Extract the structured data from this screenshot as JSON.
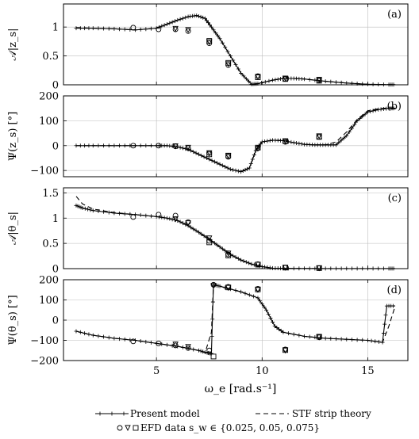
{
  "figure": {
    "xlabel": "ω_e [rad.s⁻¹]",
    "legend": {
      "present": "Present model",
      "stf": "STF strip theory",
      "efd": "EFD data s_w ∈ {0.025, 0.05, 0.075}"
    }
  },
  "chart_data": [
    {
      "type": "line",
      "panel_label": "(a)",
      "ylabel": "𝒜|z_s|",
      "xlim": [
        0.6,
        16.9
      ],
      "ylim": [
        0,
        1.4
      ],
      "xticks": [
        5,
        10,
        15
      ],
      "yticks": [
        0,
        0.5,
        1
      ],
      "ytick_labels": [
        "0",
        "0.5",
        "1"
      ],
      "grid": true,
      "series": [
        {
          "role": "present",
          "x": [
            1.2,
            2,
            3,
            4,
            5,
            5.5,
            6,
            6.5,
            6.9,
            7.3,
            7.6,
            8,
            8.5,
            9,
            9.5,
            9.8,
            10.5,
            11,
            11.5,
            12,
            13,
            14,
            15,
            16,
            16.3
          ],
          "y": [
            0.98,
            0.98,
            0.97,
            0.95,
            0.98,
            1.05,
            1.12,
            1.18,
            1.2,
            1.15,
            1.0,
            0.8,
            0.5,
            0.2,
            0.01,
            0.02,
            0.08,
            0.11,
            0.11,
            0.1,
            0.06,
            0.03,
            0.01,
            0.003,
            0.003
          ]
        },
        {
          "role": "stf",
          "x": [
            1.2,
            2,
            3,
            4,
            5,
            5.5,
            6,
            6.5,
            6.9,
            7.3,
            7.6,
            8,
            8.5,
            9,
            9.5,
            9.8,
            10.5,
            11,
            11.5,
            12,
            13,
            14,
            15,
            16,
            16.3
          ],
          "y": [
            0.99,
            0.98,
            0.97,
            0.95,
            0.98,
            1.05,
            1.12,
            1.18,
            1.2,
            1.15,
            1.0,
            0.8,
            0.5,
            0.2,
            0.01,
            0.02,
            0.08,
            0.11,
            0.11,
            0.1,
            0.06,
            0.03,
            0.01,
            0.003,
            0.003
          ]
        },
        {
          "role": "efd",
          "marker": "circle",
          "x": [
            3.9,
            5.1,
            5.9,
            6.5,
            7.5,
            8.4,
            9.8,
            11.1,
            12.7
          ],
          "y": [
            0.99,
            0.96,
            0.96,
            0.93,
            0.72,
            0.34,
            0.15,
            0.1,
            0.08
          ]
        },
        {
          "role": "efd",
          "marker": "triangle",
          "x": [
            5.9,
            6.5,
            7.5,
            8.4,
            9.8,
            11.1,
            12.7
          ],
          "y": [
            0.97,
            0.95,
            0.74,
            0.36,
            0.14,
            0.11,
            0.09
          ]
        },
        {
          "role": "efd",
          "marker": "square",
          "x": [
            7.5,
            8.4,
            9.8,
            11.1,
            12.7
          ],
          "y": [
            0.76,
            0.38,
            0.13,
            0.1,
            0.07
          ]
        }
      ]
    },
    {
      "type": "line",
      "panel_label": "(b)",
      "ylabel": "Ψ(z_s) [°]",
      "xlim": [
        0.6,
        16.9
      ],
      "ylim": [
        -125,
        200
      ],
      "xticks": [
        5,
        10,
        15
      ],
      "yticks": [
        -100,
        0,
        100,
        200
      ],
      "ytick_labels": [
        "−100",
        "0",
        "100",
        "200"
      ],
      "grid": true,
      "series": [
        {
          "role": "present",
          "x": [
            1.2,
            2,
            3,
            4,
            5,
            5.5,
            6,
            6.5,
            7,
            7.5,
            8,
            8.5,
            9,
            9.4,
            9.7,
            10,
            10.5,
            11,
            11.5,
            12,
            12.5,
            13,
            13.5,
            14,
            14.5,
            15,
            15.5,
            16,
            16.3
          ],
          "y": [
            0,
            0,
            0,
            0,
            0,
            0,
            -5,
            -15,
            -35,
            -55,
            -75,
            -95,
            -105,
            -90,
            -20,
            15,
            22,
            20,
            12,
            5,
            3,
            3,
            3,
            40,
            100,
            135,
            145,
            150,
            150
          ]
        },
        {
          "role": "stf",
          "x": [
            1.2,
            2,
            3,
            4,
            5,
            5.5,
            6,
            6.5,
            7,
            7.5,
            8,
            8.5,
            9,
            9.4,
            9.7,
            10,
            10.5,
            11,
            11.5,
            12,
            12.5,
            13,
            13.5,
            14,
            14.5,
            15,
            15.5,
            16,
            16.3
          ],
          "y": [
            0,
            0,
            0,
            0,
            0,
            0,
            -5,
            -15,
            -35,
            -55,
            -75,
            -95,
            -105,
            -90,
            -20,
            15,
            22,
            20,
            12,
            5,
            3,
            3,
            15,
            55,
            105,
            140,
            148,
            152,
            152
          ]
        },
        {
          "role": "efd",
          "marker": "circle",
          "x": [
            3.9,
            5.1,
            5.9,
            6.5,
            7.5,
            8.4,
            9.8,
            11.1,
            12.7
          ],
          "y": [
            0,
            0,
            -3,
            -10,
            -30,
            -45,
            -10,
            15,
            35
          ]
        },
        {
          "role": "efd",
          "marker": "triangle",
          "x": [
            5.9,
            6.5,
            7.5,
            8.4,
            9.8,
            11.1,
            12.7
          ],
          "y": [
            -2,
            -8,
            -30,
            -42,
            -12,
            18,
            38
          ]
        },
        {
          "role": "efd",
          "marker": "square",
          "x": [
            7.5,
            8.4,
            9.8,
            11.1,
            12.7
          ],
          "y": [
            -35,
            -40,
            -8,
            18,
            35
          ]
        }
      ]
    },
    {
      "type": "line",
      "panel_label": "(c)",
      "ylabel": "𝒜|θ_s|",
      "xlim": [
        0.6,
        16.9
      ],
      "ylim": [
        0,
        1.6
      ],
      "xticks": [
        5,
        10,
        15
      ],
      "yticks": [
        0,
        0.5,
        1,
        1.5
      ],
      "ytick_labels": [
        "0",
        "0.5",
        "1",
        "1.5"
      ],
      "grid": true,
      "series": [
        {
          "role": "present",
          "x": [
            1.2,
            1.5,
            2,
            3,
            4,
            5,
            5.5,
            6,
            6.5,
            7,
            7.5,
            8,
            8.5,
            9,
            9.5,
            10,
            10.5,
            11,
            12,
            13,
            14,
            15,
            16,
            16.3
          ],
          "y": [
            1.25,
            1.2,
            1.15,
            1.1,
            1.07,
            1.03,
            1.0,
            0.95,
            0.85,
            0.72,
            0.58,
            0.43,
            0.28,
            0.17,
            0.09,
            0.04,
            0.01,
            0.005,
            0.003,
            0.002,
            0.001,
            0.001,
            0.001,
            0.001
          ]
        },
        {
          "role": "stf",
          "x": [
            1.2,
            1.5,
            2,
            3,
            4,
            5,
            5.5,
            6,
            6.5,
            7,
            7.5,
            8,
            8.5,
            9,
            9.5,
            10,
            10.5,
            11,
            12,
            13,
            14,
            15,
            16,
            16.3
          ],
          "y": [
            1.43,
            1.28,
            1.18,
            1.11,
            1.07,
            1.03,
            1.0,
            0.95,
            0.85,
            0.72,
            0.58,
            0.43,
            0.28,
            0.17,
            0.09,
            0.04,
            0.01,
            0.005,
            0.003,
            0.002,
            0.001,
            0.001,
            0.001,
            0.001
          ]
        },
        {
          "role": "efd",
          "marker": "circle",
          "x": [
            3.9,
            5.1,
            5.9,
            6.5,
            7.5,
            8.4,
            9.8,
            11.1,
            12.7
          ],
          "y": [
            1.02,
            1.07,
            1.05,
            0.92,
            0.55,
            0.28,
            0.09,
            0.02,
            0.01
          ]
        },
        {
          "role": "efd",
          "marker": "triangle",
          "x": [
            5.9,
            6.5,
            7.5,
            8.4,
            9.8,
            11.1,
            12.7
          ],
          "y": [
            0.98,
            0.9,
            0.6,
            0.3,
            0.08,
            0.02,
            0.01
          ]
        },
        {
          "role": "efd",
          "marker": "square",
          "x": [
            7.5,
            8.4,
            9.8,
            11.1,
            12.7
          ],
          "y": [
            0.52,
            0.26,
            0.08,
            0.02,
            0.01
          ]
        }
      ]
    },
    {
      "type": "line",
      "panel_label": "(d)",
      "ylabel": "Ψ(θ_s) [°]",
      "xlim": [
        0.6,
        16.9
      ],
      "ylim": [
        -200,
        200
      ],
      "xticks": [
        5,
        10,
        15
      ],
      "yticks": [
        -200,
        -100,
        0,
        100,
        200
      ],
      "ytick_labels": [
        "−200",
        "−100",
        "0",
        "100",
        "200"
      ],
      "grid": true,
      "series": [
        {
          "role": "present",
          "x": [
            1.2,
            2,
            3,
            4,
            5,
            6,
            7,
            7.4,
            7.6,
            7.7,
            8,
            9,
            9.8,
            10.2,
            10.6,
            11,
            12,
            13,
            14,
            15,
            15.7,
            15.9,
            16.3
          ],
          "y": [
            -55,
            -75,
            -90,
            -100,
            -115,
            -130,
            -150,
            -162,
            -165,
            175,
            168,
            140,
            110,
            50,
            -30,
            -60,
            -80,
            -90,
            -95,
            -100,
            -110,
            70,
            70
          ]
        },
        {
          "role": "stf",
          "x": [
            1.2,
            2,
            3,
            4,
            5,
            6,
            7,
            7.3,
            7.6,
            7.7,
            8,
            9,
            9.8,
            10.2,
            10.6,
            11,
            12,
            13,
            14,
            15,
            15.7,
            16,
            16.3
          ],
          "y": [
            -55,
            -75,
            -90,
            -100,
            -115,
            -130,
            -150,
            -162,
            -60,
            175,
            168,
            140,
            110,
            50,
            -30,
            -60,
            -80,
            -90,
            -95,
            -100,
            -110,
            -30,
            70
          ]
        },
        {
          "role": "efd",
          "marker": "circle",
          "x": [
            3.9,
            5.1,
            5.9,
            6.5,
            7.5,
            7.7,
            8.4,
            9.8,
            11.1,
            12.7
          ],
          "y": [
            -105,
            -115,
            -125,
            -138,
            -150,
            175,
            165,
            155,
            -145,
            -85
          ]
        },
        {
          "role": "efd",
          "marker": "triangle",
          "x": [
            5.9,
            6.5,
            7.7,
            8.4,
            9.8,
            11.1,
            12.7
          ],
          "y": [
            -120,
            -132,
            170,
            160,
            150,
            -150,
            -85
          ]
        },
        {
          "role": "efd",
          "marker": "square",
          "x": [
            7.7,
            8.4,
            9.8,
            11.1,
            12.7
          ],
          "y": [
            -180,
            162,
            152,
            -148,
            -82
          ]
        }
      ]
    }
  ]
}
